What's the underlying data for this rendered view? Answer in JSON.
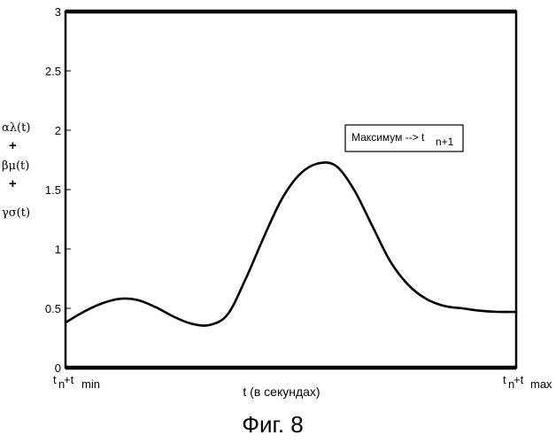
{
  "chart_data": {
    "type": "line",
    "title": "",
    "caption": "Фиг. 8",
    "xlabel": "t (в секундах)",
    "x_tick_labels": [
      {
        "base": "t",
        "sub1": "n",
        "plus": "+t",
        "sub2": "min"
      },
      {
        "base": "t",
        "sub1": "n",
        "plus": "+t",
        "sub2": "max"
      }
    ],
    "ylabel_lines": [
      "αλ(t)",
      "+",
      "βμ(t)",
      "+",
      "γσ(t)"
    ],
    "ylim": [
      0,
      3
    ],
    "xlim": [
      0,
      1
    ],
    "yticks": [
      {
        "value": 0,
        "label": "0"
      },
      {
        "value": 0.5,
        "label": "0.5"
      },
      {
        "value": 1,
        "label": "1"
      },
      {
        "value": 1.5,
        "label": "1.5"
      },
      {
        "value": 2,
        "label": "2"
      },
      {
        "value": 2.5,
        "label": "2.5"
      },
      {
        "value": 3,
        "label": "3"
      }
    ],
    "grid": false,
    "annotation": {
      "text": "Максимум  --> t",
      "sub": "n+1"
    },
    "series": [
      {
        "x": [
          0,
          0.04,
          0.08,
          0.12,
          0.16,
          0.2,
          0.24,
          0.28,
          0.32,
          0.36,
          0.4,
          0.44,
          0.48,
          0.52,
          0.56,
          0.6,
          0.64,
          0.68,
          0.72,
          0.76,
          0.8,
          0.84,
          0.88,
          0.92,
          0.96,
          1.0
        ],
        "y": [
          0.38,
          0.47,
          0.54,
          0.58,
          0.57,
          0.51,
          0.43,
          0.37,
          0.36,
          0.45,
          0.75,
          1.1,
          1.42,
          1.63,
          1.72,
          1.7,
          1.5,
          1.2,
          0.9,
          0.7,
          0.58,
          0.52,
          0.5,
          0.48,
          0.47,
          0.47
        ]
      }
    ]
  }
}
